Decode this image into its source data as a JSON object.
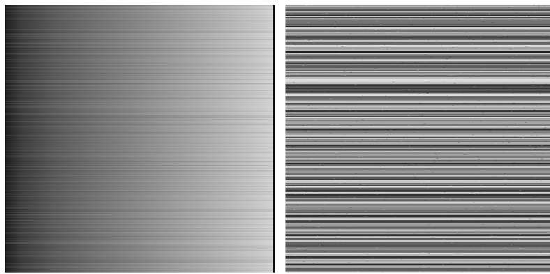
{
  "image": {
    "panels": [
      {
        "name": "gradient-panel",
        "description_colors": {
          "dark_end": "#1f1f1f",
          "light_end": "#d6d6d6",
          "edge": "#1c1c1c"
        }
      },
      {
        "name": "stripe-panel",
        "description_colors": {
          "base": "#7e7e7e",
          "light": "#e8e8e8",
          "dark": "#262626"
        }
      }
    ]
  }
}
